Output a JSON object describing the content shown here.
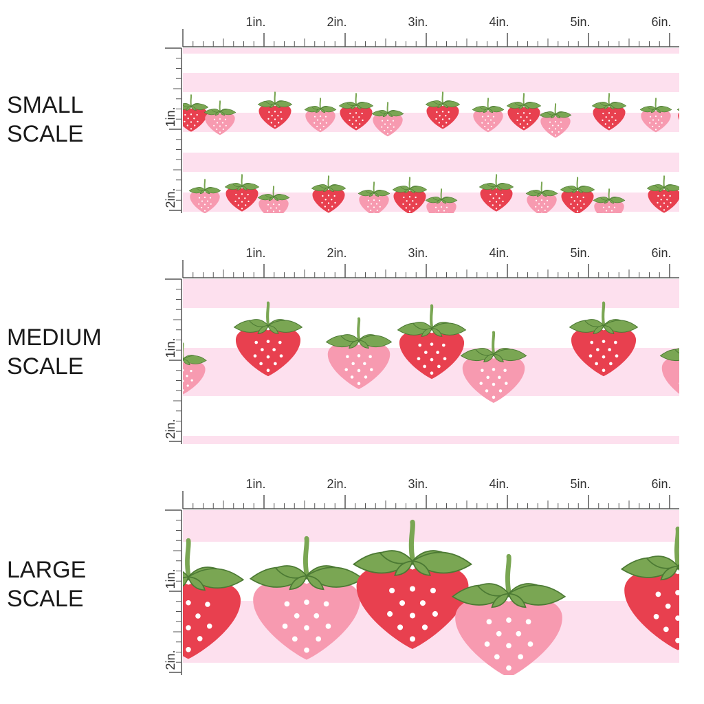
{
  "scales": [
    {
      "label_lines": [
        "SMALL",
        "SCALE"
      ],
      "ruler_x": [
        "1in.",
        "2in.",
        "3in.",
        "4in.",
        "5in.",
        "6in."
      ],
      "ruler_y": [
        "1in.",
        "2in."
      ]
    },
    {
      "label_lines": [
        "MEDIUM",
        "SCALE"
      ],
      "ruler_x": [
        "1in.",
        "2in.",
        "3in.",
        "4in.",
        "5in.",
        "6in."
      ],
      "ruler_y": [
        "1in.",
        "2in."
      ]
    },
    {
      "label_lines": [
        "LARGE",
        "SCALE"
      ],
      "ruler_x": [
        "1in.",
        "2in.",
        "3in.",
        "4in.",
        "5in.",
        "6in."
      ],
      "ruler_y": [
        "1in.",
        "2in."
      ]
    }
  ],
  "colors": {
    "stripe_pink": "#fde0ee",
    "strawberry_red": "#e8404f",
    "strawberry_pink": "#f79ab0",
    "leaf_green": "#7aa653",
    "leaf_outline": "#4c7a34",
    "seed": "#ffffff",
    "ruler": "#555555"
  }
}
